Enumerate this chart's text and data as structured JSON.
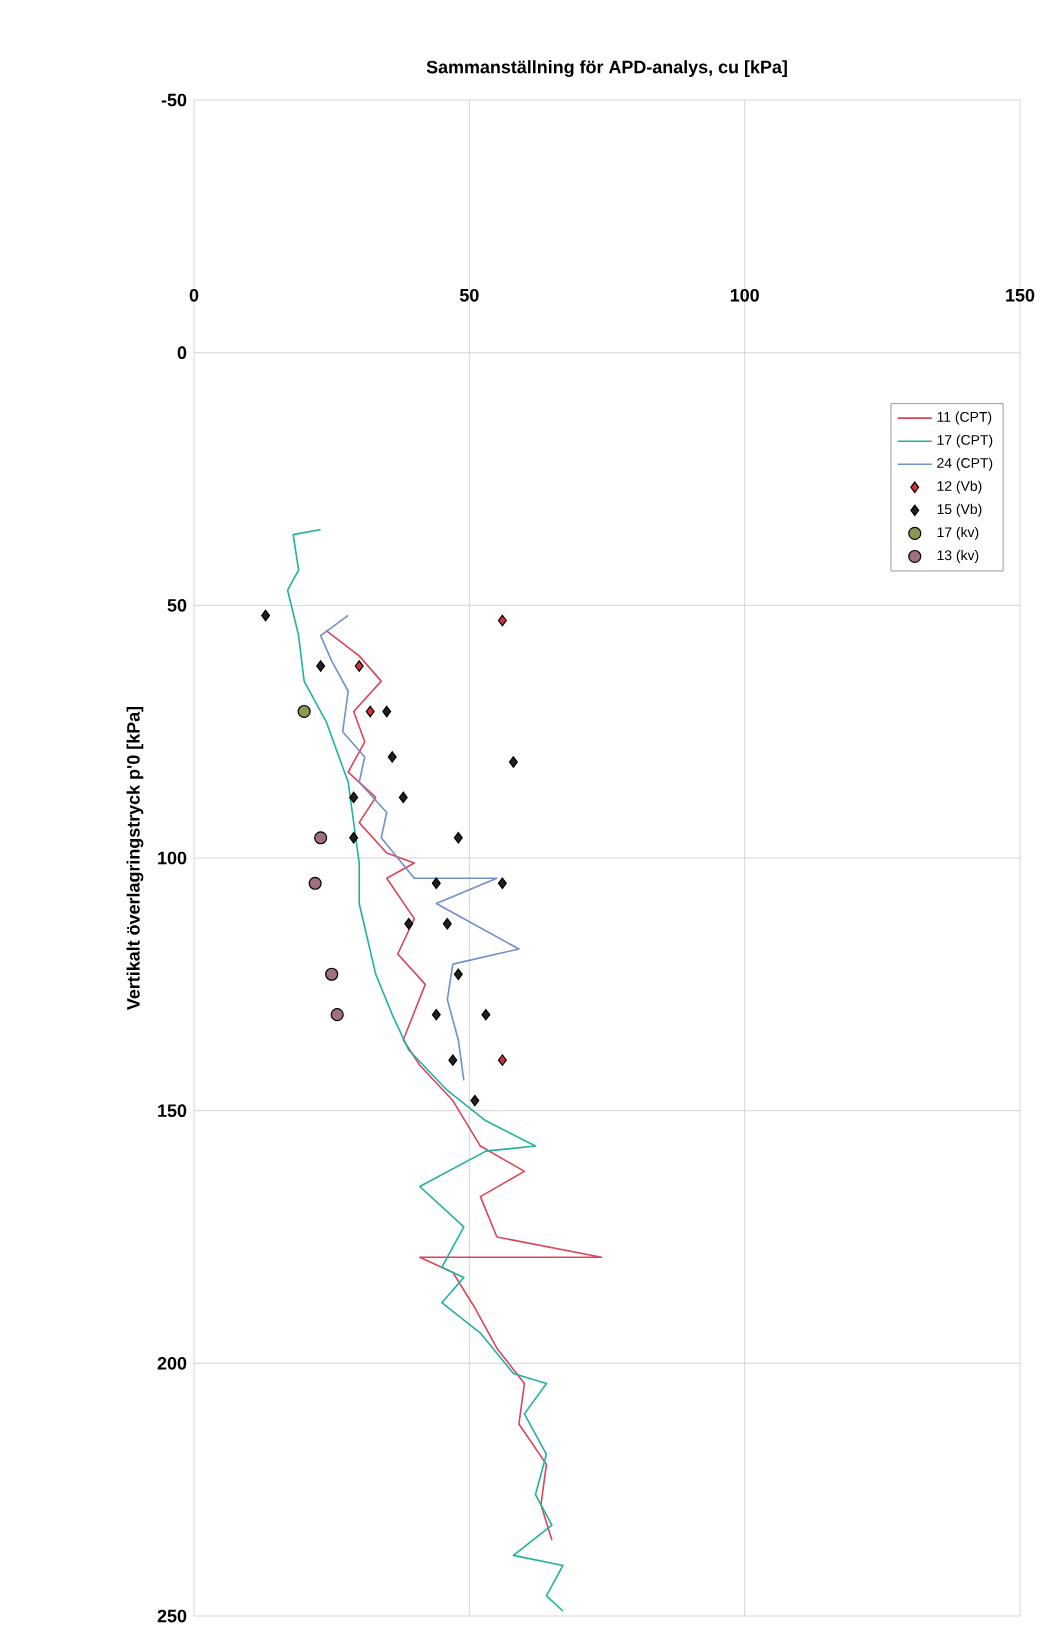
{
  "chart_data": {
    "type": "line",
    "title": "Sammanställning för APD-analys, cu [kPa]",
    "ylabel": "Vertikalt överlagringstryck p'0  [kPa]",
    "xlim": [
      0,
      150
    ],
    "xticks": [
      0,
      50,
      100,
      150
    ],
    "ylim": [
      250,
      -50
    ],
    "yticks": [
      -50,
      0,
      50,
      100,
      150,
      200,
      250
    ],
    "grid": true,
    "legend": "top right",
    "series": [
      {
        "name": "11 (CPT)",
        "color": "#d9455a",
        "x": [
          24,
          30,
          34,
          29,
          31,
          28,
          33,
          30,
          35,
          40,
          35,
          40,
          37,
          42,
          38,
          41,
          47,
          52,
          60,
          52,
          55,
          74,
          41,
          47,
          51,
          55,
          60,
          59,
          64,
          63,
          65
        ],
        "values": [
          55,
          60,
          65,
          71,
          77,
          83,
          88,
          93,
          99,
          101,
          104,
          112,
          119,
          125,
          136,
          141,
          148,
          157,
          162,
          167,
          175,
          179,
          179,
          182,
          189,
          197,
          204,
          212,
          220,
          228,
          235
        ]
      },
      {
        "name": "17 (CPT)",
        "color": "#20b2a0",
        "x": [
          23,
          18,
          19,
          17,
          19,
          20,
          24,
          28,
          29,
          30,
          30,
          33,
          36,
          39,
          46,
          53,
          62,
          53,
          41,
          49,
          45,
          49,
          45,
          52,
          58,
          64,
          60,
          64,
          62,
          65,
          58,
          67,
          64,
          67
        ],
        "values": [
          35,
          36,
          43,
          47,
          56,
          65,
          73,
          85,
          93,
          101,
          109,
          123,
          131,
          138,
          146,
          152,
          157,
          158,
          165,
          173,
          181,
          183,
          188,
          194,
          202,
          204,
          210,
          218,
          226,
          232,
          238,
          240,
          246,
          249
        ]
      },
      {
        "name": "24 (CPT)",
        "color": "#7090c8",
        "x": [
          28,
          23,
          25,
          28,
          27,
          31,
          30,
          35,
          34,
          40,
          55,
          44,
          59,
          47,
          46,
          48,
          49
        ],
        "values": [
          52,
          56,
          61,
          67,
          75,
          80,
          85,
          91,
          96,
          104,
          104,
          109,
          118,
          121,
          128,
          136,
          144
        ]
      },
      {
        "name": "12 (Vb)",
        "color": "#d03040",
        "type": "scatter",
        "marker": "diamond",
        "x": [
          56,
          30,
          32,
          56
        ],
        "values": [
          53,
          62,
          71,
          140
        ]
      },
      {
        "name": "15 (Vb)",
        "color": "#202020",
        "type": "scatter",
        "marker": "diamond",
        "x": [
          13,
          23,
          35,
          58,
          36,
          29,
          38,
          29,
          48,
          44,
          56,
          39,
          46,
          48,
          44,
          53,
          47,
          51
        ],
        "values": [
          52,
          62,
          71,
          81,
          80,
          88,
          88,
          96,
          96,
          105,
          105,
          113,
          113,
          123,
          131,
          131,
          140,
          148
        ]
      },
      {
        "name": "17 (kv)",
        "color": "#8a9a50",
        "type": "scatter",
        "marker": "circle",
        "x": [
          20
        ],
        "values": [
          71
        ]
      },
      {
        "name": "13 (kv)",
        "color": "#a07080",
        "type": "scatter",
        "marker": "circle",
        "x": [
          23,
          22,
          25,
          26
        ],
        "values": [
          96,
          105,
          123,
          131
        ]
      }
    ]
  }
}
